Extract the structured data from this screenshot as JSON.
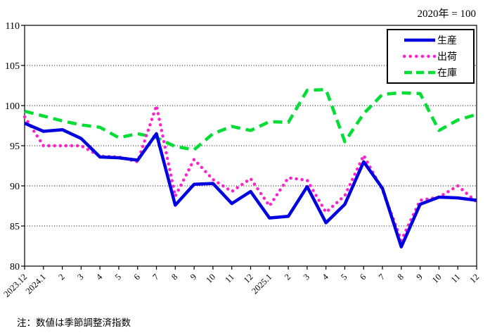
{
  "title": "2020年 = 100",
  "note": "注：数値は季節調整済指数",
  "chart_data": {
    "type": "line",
    "title": "2020年 = 100",
    "xlabel": "",
    "ylabel": "",
    "ylim": [
      80,
      110
    ],
    "ytick_step": 5,
    "grid": "horizontal-dotted",
    "legend_position": "top-right",
    "categories": [
      "2023.12",
      "2024.1",
      "2",
      "3",
      "4",
      "5",
      "6",
      "7",
      "8",
      "9",
      "10",
      "11",
      "12",
      "2025.1",
      "2",
      "3",
      "4",
      "5",
      "6",
      "7",
      "8",
      "9",
      "10",
      "11",
      "12"
    ],
    "series": [
      {
        "id": "production",
        "name": "生産",
        "color": "#0000e0",
        "line_style": "solid",
        "values": [
          97.8,
          96.8,
          97.0,
          95.9,
          93.6,
          93.5,
          93.2,
          96.5,
          87.6,
          90.2,
          90.3,
          87.8,
          89.3,
          86.0,
          86.2,
          89.9,
          85.4,
          87.7,
          93.0,
          89.7,
          82.4,
          87.7,
          88.6,
          88.5,
          88.2
        ]
      },
      {
        "id": "shipments",
        "name": "出荷",
        "color": "#ff22cc",
        "line_style": "dotted",
        "values": [
          98.6,
          95.0,
          95.0,
          95.0,
          93.7,
          93.6,
          93.0,
          100.0,
          88.7,
          93.3,
          90.8,
          89.3,
          90.9,
          87.5,
          91.0,
          90.7,
          86.7,
          88.8,
          93.8,
          89.5,
          83.2,
          88.2,
          88.6,
          90.0,
          88.0
        ]
      },
      {
        "id": "inventory",
        "name": "在庫",
        "color": "#00dd33",
        "line_style": "dashed",
        "values": [
          99.3,
          98.7,
          98.1,
          97.6,
          97.3,
          96.0,
          96.5,
          96.0,
          94.9,
          94.5,
          96.5,
          97.4,
          96.9,
          98.0,
          97.9,
          101.9,
          102.0,
          95.5,
          99.0,
          101.4,
          101.6,
          101.5,
          96.9,
          98.2,
          98.9
        ]
      }
    ]
  }
}
